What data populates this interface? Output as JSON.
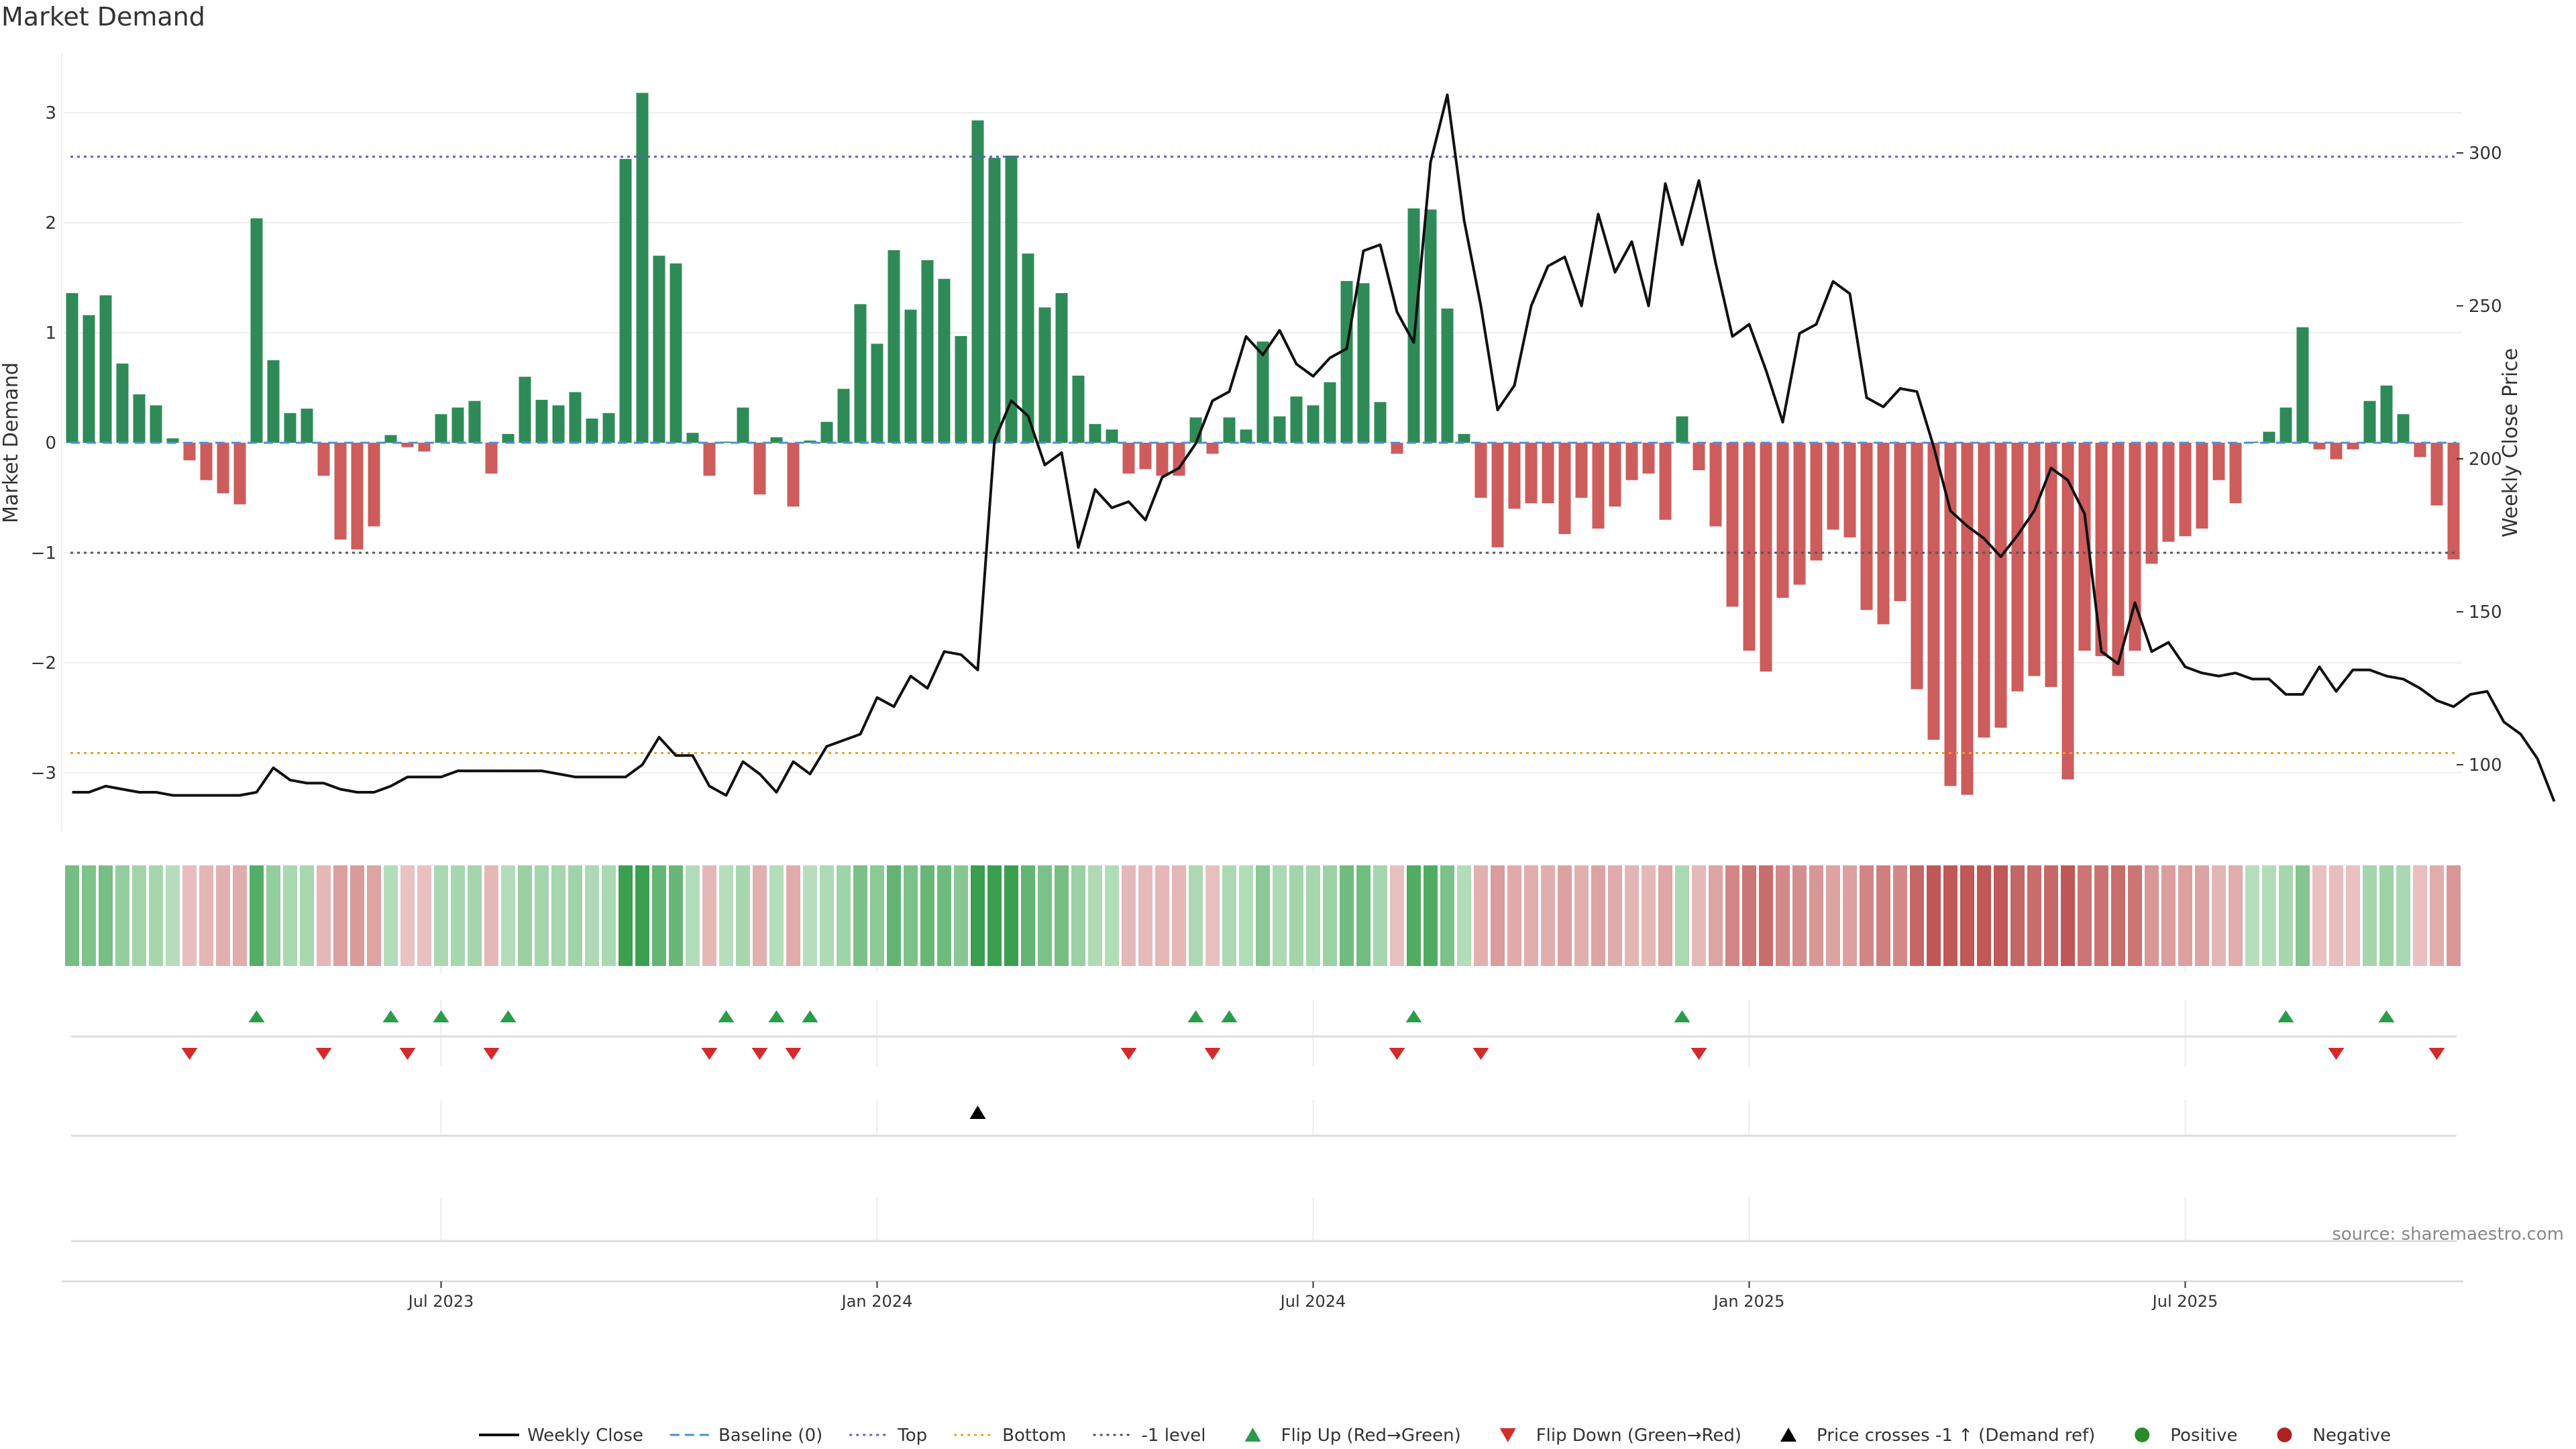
{
  "chart_data": {
    "type": "bar",
    "title": "Market Demand",
    "ylabel": "Market Demand",
    "y2label": "Weekly Close Price",
    "ylim": [
      -3.5,
      3.5
    ],
    "y2lim": [
      80,
      330
    ],
    "yticks": [
      -3,
      -2,
      -1,
      0,
      1,
      2,
      3
    ],
    "y2ticks": [
      100,
      150,
      200,
      250,
      300
    ],
    "y2ticks_labels": [
      "100",
      "150",
      "200",
      "250",
      "300"
    ],
    "ytick_labels": [
      "−3",
      "−2",
      "−1",
      "0",
      "1",
      "2",
      "3"
    ],
    "top_level": 2.6,
    "bottom_level": -2.82,
    "minus_one_level": -1.0,
    "x_tick_labels": [
      {
        "label": "Jul 2023",
        "week": 22
      },
      {
        "label": "Jan 2024",
        "week": 48
      },
      {
        "label": "Jul 2024",
        "week": 74
      },
      {
        "label": "Jan 2025",
        "week": 100
      },
      {
        "label": "Jul 2025",
        "week": 126
      }
    ],
    "demand": [
      1.36,
      1.16,
      1.34,
      0.72,
      0.44,
      0.34,
      0.04,
      -0.16,
      -0.34,
      -0.46,
      -0.56,
      2.04,
      0.75,
      0.27,
      0.31,
      -0.3,
      -0.88,
      -0.97,
      -0.76,
      0.07,
      -0.04,
      -0.08,
      0.26,
      0.32,
      0.38,
      -0.28,
      0.08,
      0.6,
      0.39,
      0.34,
      0.46,
      0.22,
      0.27,
      2.58,
      3.18,
      1.7,
      1.63,
      0.09,
      -0.3,
      0.01,
      0.32,
      -0.47,
      0.05,
      -0.58,
      0.02,
      0.19,
      0.49,
      1.26,
      0.9,
      1.75,
      1.21,
      1.66,
      1.49,
      0.97,
      2.93,
      2.59,
      2.61,
      1.72,
      1.23,
      1.36,
      0.61,
      0.17,
      0.12,
      -0.28,
      -0.24,
      -0.3,
      -0.3,
      0.23,
      -0.1,
      0.23,
      0.12,
      0.92,
      0.24,
      0.42,
      0.34,
      0.55,
      1.47,
      1.45,
      0.37,
      -0.1,
      2.13,
      2.12,
      1.22,
      0.08,
      -0.5,
      -0.95,
      -0.6,
      -0.55,
      -0.55,
      -0.83,
      -0.5,
      -0.78,
      -0.58,
      -0.34,
      -0.28,
      -0.7,
      0.24,
      -0.25,
      -0.76,
      -1.49,
      -1.89,
      -2.08,
      -1.41,
      -1.29,
      -1.07,
      -0.79,
      -0.86,
      -1.52,
      -1.65,
      -1.44,
      -2.24,
      -2.7,
      -3.12,
      -3.2,
      -2.68,
      -2.59,
      -2.26,
      -2.12,
      -2.22,
      -3.06,
      -1.89,
      -1.94,
      -2.12,
      -1.89,
      -1.1,
      -0.9,
      -0.85,
      -0.78,
      -0.34,
      -0.55,
      0.01,
      0.1,
      0.32,
      1.05,
      -0.06,
      -0.15,
      -0.06,
      0.38,
      0.52,
      0.26,
      -0.13,
      -0.57,
      -1.06
    ],
    "price": [
      91,
      91,
      93,
      92,
      91,
      91,
      90,
      90,
      90,
      90,
      90,
      91,
      99,
      95,
      94,
      94,
      92,
      91,
      91,
      93,
      96,
      96,
      96,
      98,
      98,
      98,
      98,
      98,
      98,
      97,
      96,
      96,
      96,
      96,
      100,
      109,
      103,
      103,
      93,
      90,
      101,
      97,
      91,
      101,
      97,
      106,
      108,
      110,
      122,
      119,
      129,
      125,
      137,
      136,
      131,
      206,
      219,
      214,
      198,
      202,
      171,
      190,
      184,
      186,
      180,
      194,
      197,
      205,
      219,
      222,
      240,
      234,
      242,
      231,
      227,
      233,
      236,
      268,
      270,
      248,
      238,
      297,
      319,
      278,
      250,
      216,
      224,
      250,
      263,
      266,
      250,
      280,
      261,
      271,
      250,
      290,
      270,
      291,
      264,
      240,
      244,
      229,
      212,
      241,
      244,
      258,
      254,
      220,
      217,
      223,
      222,
      204,
      183,
      178,
      174,
      168,
      175,
      183,
      197,
      193,
      182,
      137,
      133,
      153,
      137,
      140,
      132,
      130,
      129,
      130,
      128,
      128,
      123,
      123,
      132,
      124,
      131,
      131,
      129,
      128,
      125,
      121,
      119,
      123,
      124,
      114,
      110,
      102,
      88
    ],
    "flip_up_weeks": [
      11,
      19,
      22,
      26,
      39,
      42,
      44,
      67,
      69,
      80,
      96,
      132,
      138
    ],
    "flip_down_weeks": [
      7,
      15,
      20,
      25,
      38,
      41,
      43,
      63,
      68,
      79,
      84,
      97,
      135,
      141
    ],
    "price_cross_weeks": [
      54
    ],
    "series": [
      {
        "name": "Weekly Close"
      },
      {
        "name": "Baseline (0)"
      },
      {
        "name": "Top"
      },
      {
        "name": "Bottom"
      },
      {
        "name": "-1 level"
      }
    ],
    "legend": [
      {
        "label": "Weekly Close",
        "symbol": "line",
        "color": "#111111"
      },
      {
        "label": "Baseline (0)",
        "symbol": "dash",
        "color": "#4a90d9"
      },
      {
        "label": "Top",
        "symbol": "dot",
        "color": "#6a5acd"
      },
      {
        "label": "Bottom",
        "symbol": "dot",
        "color": "#e8a030"
      },
      {
        "label": "-1 level",
        "symbol": "dot",
        "color": "#555555"
      },
      {
        "label": "Flip Up (Red→Green)",
        "symbol": "tri-up",
        "color": "#2a9d4a"
      },
      {
        "label": "Flip Down (Green→Red)",
        "symbol": "tri-down",
        "color": "#d62a2a"
      },
      {
        "label": "Price crosses -1 ↑ (Demand ref)",
        "symbol": "tri-up",
        "color": "#000000"
      },
      {
        "label": "Positive",
        "symbol": "circle",
        "color": "#2a8a2a"
      },
      {
        "label": "Negative",
        "symbol": "circle",
        "color": "#b02222"
      }
    ],
    "legend_position": "bottom-center",
    "grid": true,
    "colors": {
      "positive": "#2e8b57",
      "negative": "#cd5c5c",
      "price_line": "#111111",
      "top_line": "#6a5acd",
      "bottom_line": "#e8a030",
      "minus_one_line": "#555555",
      "baseline": "#4a90d9",
      "flip_up": "#2a9d4a",
      "flip_down": "#d62a2a",
      "cross_marker": "#000000"
    }
  },
  "source": "source: sharemaestro.com"
}
